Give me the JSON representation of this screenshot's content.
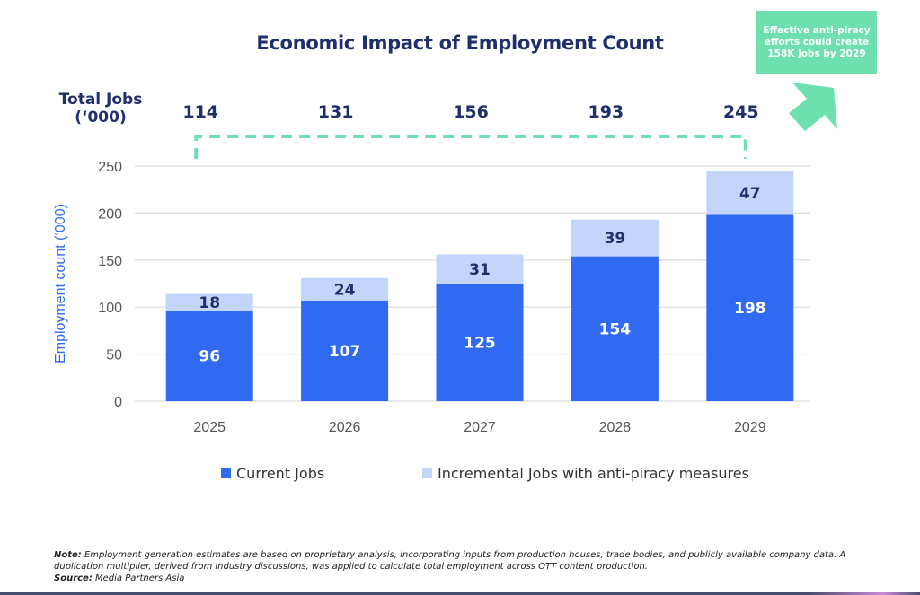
{
  "header": {
    "title": "Economic Impact of Employment Count"
  },
  "callout": {
    "text": "Effective anti-piracy efforts could create 158K jobs by 2029",
    "color": "#6ee0b0"
  },
  "totals": {
    "label_line1": "Total Jobs",
    "label_line2": "(‘000)",
    "values": [
      "114",
      "131",
      "156",
      "193",
      "245"
    ]
  },
  "legend": {
    "items": [
      {
        "label": "Current Jobs",
        "color": "#2f6af0"
      },
      {
        "label": "Incremental Jobs with anti-piracy measures",
        "color": "#c3d5fb"
      }
    ]
  },
  "footnote": {
    "note_label": "Note:",
    "note_text": " Employment generation estimates are based on proprietary analysis, incorporating inputs from production houses, trade bodies, and publicly available company data. A duplication multiplier, derived from industry discussions, was applied to calculate total employment across OTT content production.",
    "source_label": "Source:",
    "source_text": " Media Partners Asia"
  },
  "chart_data": {
    "type": "bar",
    "stacked": true,
    "title": "Economic Impact of Employment Count",
    "xlabel": "",
    "ylabel": "Employment count (‘000)",
    "categories": [
      "2025",
      "2026",
      "2027",
      "2028",
      "2029"
    ],
    "series": [
      {
        "name": "Current Jobs",
        "values": [
          96,
          107,
          125,
          154,
          198
        ],
        "color": "#2f6af0"
      },
      {
        "name": "Incremental Jobs with anti-piracy measures",
        "values": [
          18,
          24,
          31,
          39,
          47
        ],
        "color": "#c3d5fb"
      }
    ],
    "totals": [
      114,
      131,
      156,
      193,
      245
    ],
    "ylim": [
      0,
      250
    ],
    "yticks": [
      0,
      50,
      100,
      150,
      200,
      250
    ],
    "grid": true,
    "legend_position": "bottom",
    "annotation": "Effective anti-piracy efforts could create 158K jobs by 2029"
  }
}
